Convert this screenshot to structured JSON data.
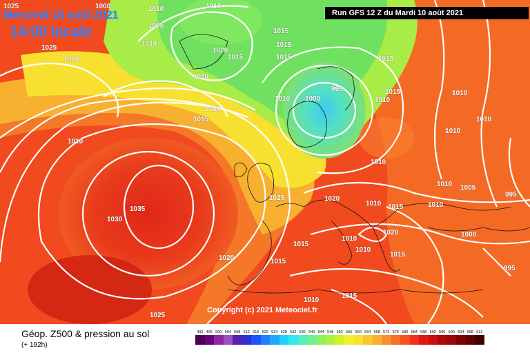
{
  "header": {
    "date": "Mercredi 18 août 2021",
    "time": "14:00 locale",
    "run": "Run GFS 12 Z du Mardi 10 août 2021"
  },
  "copyright": "Copyright (c) 2021 Meteociel.fr",
  "footer": {
    "title": "Géop. Z500 & pression au sol",
    "subtitle": "(+ 192h)"
  },
  "isobar_labels": [
    "1025",
    "1000",
    "1010",
    "1005",
    "1025",
    "1020",
    "1010",
    "1010",
    "1020",
    "1015",
    "1015",
    "1015",
    "1015",
    "1010",
    "1000",
    "995",
    "1015",
    "1010",
    "1010",
    "1015",
    "1010",
    "1015",
    "1010",
    "1010",
    "1010",
    "1010",
    "1010",
    "1010",
    "1025",
    "1020",
    "1010",
    "1015",
    "1010",
    "1005",
    "995",
    "1035",
    "1030",
    "1015",
    "1010",
    "1010",
    "1000",
    "1015",
    "1020",
    "1015",
    "995",
    "1010",
    "1015",
    "1020",
    "1025"
  ],
  "legend": {
    "values": [
      "492",
      "496",
      "500",
      "504",
      "508",
      "512",
      "516",
      "520",
      "524",
      "528",
      "532",
      "536",
      "540",
      "544",
      "548",
      "552",
      "556",
      "560",
      "564",
      "568",
      "572",
      "576",
      "580",
      "584",
      "588",
      "592",
      "596",
      "600",
      "604",
      "608",
      "612"
    ],
    "colors": [
      "#4b0055",
      "#6a007a",
      "#8a2aa0",
      "#a050c0",
      "#5a20b0",
      "#3030d0",
      "#2050ff",
      "#2080ff",
      "#20a8ff",
      "#20d0ff",
      "#30e8f0",
      "#50f0c0",
      "#70f090",
      "#90f060",
      "#b0f040",
      "#d0f030",
      "#f0f030",
      "#f8e030",
      "#f8c830",
      "#f8b030",
      "#f89030",
      "#f87028",
      "#f85020",
      "#f03020",
      "#e01818",
      "#c81010",
      "#b00808",
      "#980808",
      "#800000",
      "#600000",
      "#400000"
    ]
  }
}
